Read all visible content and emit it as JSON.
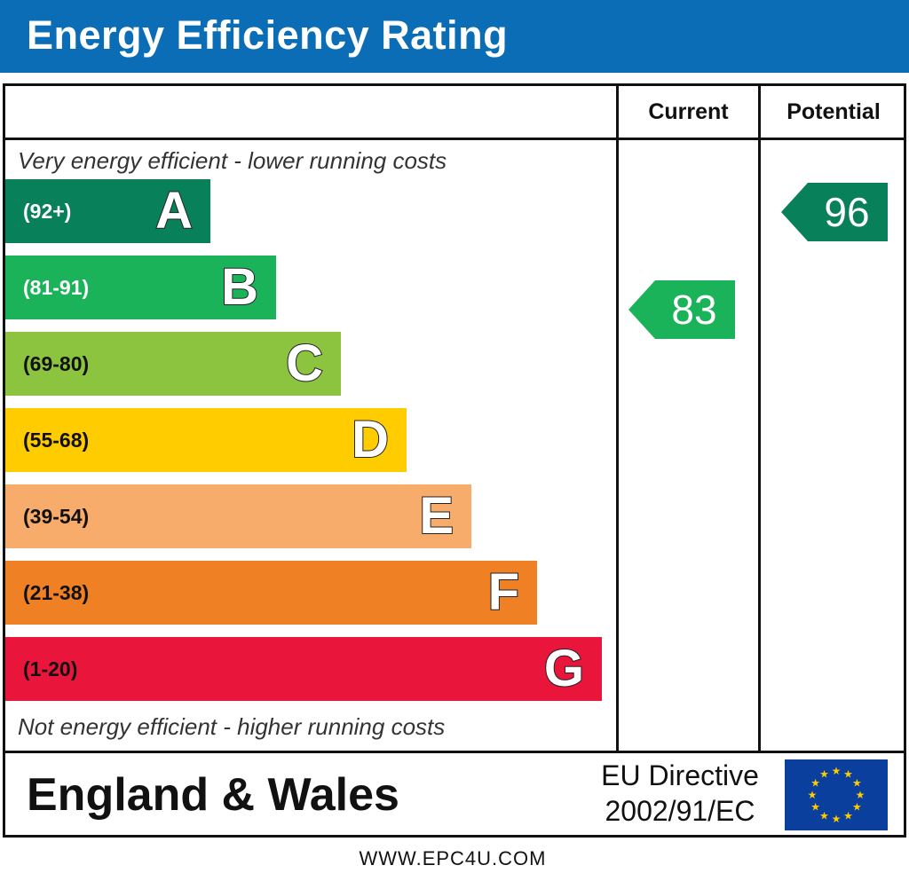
{
  "header": {
    "title": "Energy Efficiency Rating"
  },
  "columns": {
    "current": "Current",
    "potential": "Potential"
  },
  "notes": {
    "top": "Very energy efficient - lower running costs",
    "bottom": "Not energy efficient - higher running costs"
  },
  "chart_data": {
    "type": "bar",
    "title": "Energy Efficiency Rating",
    "bands": [
      {
        "letter": "A",
        "range": "(92+)",
        "color": "#08805a",
        "text_color": "#ffffff",
        "min": 92,
        "max": 100
      },
      {
        "letter": "B",
        "range": "(81-91)",
        "color": "#1bb35a",
        "text_color": "#ffffff",
        "min": 81,
        "max": 91
      },
      {
        "letter": "C",
        "range": "(69-80)",
        "color": "#8cc43f",
        "text_color": "#111111",
        "min": 69,
        "max": 80
      },
      {
        "letter": "D",
        "range": "(55-68)",
        "color": "#ffcc00",
        "text_color": "#111111",
        "min": 55,
        "max": 68
      },
      {
        "letter": "E",
        "range": "(39-54)",
        "color": "#f7ac6b",
        "text_color": "#111111",
        "min": 39,
        "max": 54
      },
      {
        "letter": "F",
        "range": "(21-38)",
        "color": "#ef8023",
        "text_color": "#111111",
        "min": 21,
        "max": 38
      },
      {
        "letter": "G",
        "range": "(1-20)",
        "color": "#e9153b",
        "text_color": "#111111",
        "min": 1,
        "max": 20
      }
    ],
    "current": {
      "value": "83",
      "band": "B",
      "color": "#1bb35a"
    },
    "potential": {
      "value": "96",
      "band": "A",
      "color": "#08805a"
    }
  },
  "footer_box": {
    "country": "England & Wales",
    "directive_line1": "EU Directive",
    "directive_line2": "2002/91/EC",
    "flag_icon": "eu-flag-icon"
  },
  "footer": {
    "website": "WWW.EPC4U.COM"
  }
}
